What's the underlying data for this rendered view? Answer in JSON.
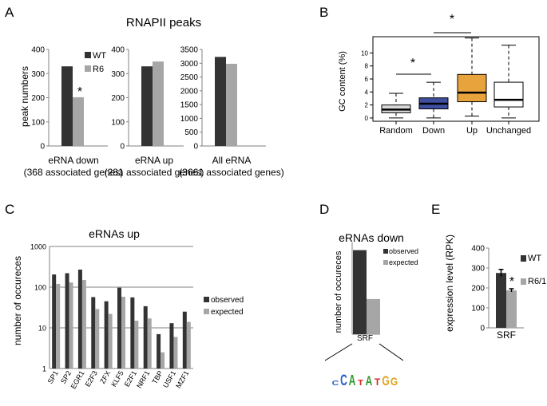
{
  "panels": {
    "A": "A",
    "B": "B",
    "C": "C",
    "D": "D",
    "E": "E"
  },
  "colors": {
    "dark": "#333333",
    "light": "#a6a6a6",
    "box_random": "#d9d9d9",
    "box_down": "#3f4fa0",
    "box_up": "#e8a33d",
    "box_unchanged": "#ffffff"
  },
  "chart_data": [
    {
      "id": "A",
      "type": "bar",
      "title": "RNAPII peaks",
      "ylabel": "peak numbers",
      "legend": [
        "WT",
        "R6"
      ],
      "subplots": [
        {
          "categories": [
            "eRNA down\n(368 associated genes)"
          ],
          "series": [
            {
              "name": "WT",
              "values": [
                330
              ]
            },
            {
              "name": "R6",
              "values": [
                202
              ]
            }
          ],
          "ylim": [
            0,
            400
          ],
          "yticks": [
            0,
            100,
            200,
            300,
            400
          ],
          "annotation": "*"
        },
        {
          "categories": [
            "eRNA up\n(281 associated genes)"
          ],
          "series": [
            {
              "name": "WT",
              "values": [
                330
              ]
            },
            {
              "name": "R6",
              "values": [
                350
              ]
            }
          ],
          "ylim": [
            0,
            400
          ],
          "yticks": [
            0,
            100,
            200,
            300,
            400
          ]
        },
        {
          "categories": [
            "All eRNA\n(3661 associated genes)"
          ],
          "series": [
            {
              "name": "WT",
              "values": [
                3230
              ]
            },
            {
              "name": "R6",
              "values": [
                2980
              ]
            }
          ],
          "ylim": [
            0,
            3500
          ],
          "yticks": [
            0,
            500,
            1000,
            1500,
            2000,
            2500,
            3000,
            3500
          ]
        }
      ],
      "xlabels": [
        "eRNA down",
        "(368 associated genes)",
        "eRNA up",
        "(281 associated genes)",
        "All eRNA",
        "(3661 associated genes)"
      ]
    },
    {
      "id": "B",
      "type": "boxplot",
      "ylabel": "GC content (%)",
      "ylim": [
        -0.5,
        12.5
      ],
      "yticks": [
        0,
        2,
        4,
        6,
        8,
        10
      ],
      "categories": [
        "Random",
        "Down",
        "Up",
        "Unchanged"
      ],
      "boxes": [
        {
          "name": "Random",
          "whisker_low": 0,
          "q1": 0.8,
          "median": 1.3,
          "q3": 2.0,
          "whisker_high": 3.8
        },
        {
          "name": "Down",
          "whisker_low": 0,
          "q1": 1.4,
          "median": 2.2,
          "q3": 3.1,
          "whisker_high": 5.5
        },
        {
          "name": "Up",
          "whisker_low": 0.3,
          "q1": 2.5,
          "median": 3.9,
          "q3": 6.7,
          "whisker_high": 12.3
        },
        {
          "name": "Unchanged",
          "whisker_low": 0,
          "q1": 1.7,
          "median": 2.8,
          "q3": 5.5,
          "whisker_high": 11.2
        }
      ],
      "significance": [
        {
          "between": [
            "Random",
            "Down"
          ],
          "label": "*"
        },
        {
          "between": [
            "Down",
            "Up"
          ],
          "label": "*"
        }
      ]
    },
    {
      "id": "C",
      "type": "bar",
      "title": "eRNAs up",
      "ylabel": "number of occureces",
      "yscale": "log",
      "ylim": [
        1,
        1000
      ],
      "yticks": [
        1,
        10,
        100,
        1000
      ],
      "categories": [
        "SP1",
        "SP2",
        "EGR1",
        "E2F3",
        "ZFX",
        "KLF5",
        "E2F1",
        "NRF1",
        "TBP",
        "USF1",
        "MZF1"
      ],
      "series": [
        {
          "name": "observed",
          "values": [
            205,
            220,
            270,
            57,
            45,
            97,
            56,
            34,
            7,
            13,
            25
          ]
        },
        {
          "name": "expected",
          "values": [
            120,
            130,
            150,
            29,
            22,
            58,
            15,
            17,
            2.5,
            6,
            14
          ]
        }
      ]
    },
    {
      "id": "D",
      "type": "bar",
      "title": "eRNAs down",
      "ylabel": "number of occureces",
      "categories": [
        "SRF"
      ],
      "series": [
        {
          "name": "observed",
          "values": [
            22
          ]
        },
        {
          "name": "expected",
          "values": [
            9.2
          ]
        }
      ],
      "annotation": "*",
      "motif": "CCATATGG"
    },
    {
      "id": "E",
      "type": "bar",
      "ylabel": "expression level (RPK)",
      "ylim": [
        0,
        400
      ],
      "yticks": [
        0,
        100,
        200,
        300,
        400
      ],
      "categories": [
        "SRF"
      ],
      "series": [
        {
          "name": "WT",
          "values": [
            275
          ],
          "error": 18
        },
        {
          "name": "R6/1",
          "values": [
            188
          ],
          "error": 8
        }
      ],
      "annotation": "*"
    }
  ]
}
